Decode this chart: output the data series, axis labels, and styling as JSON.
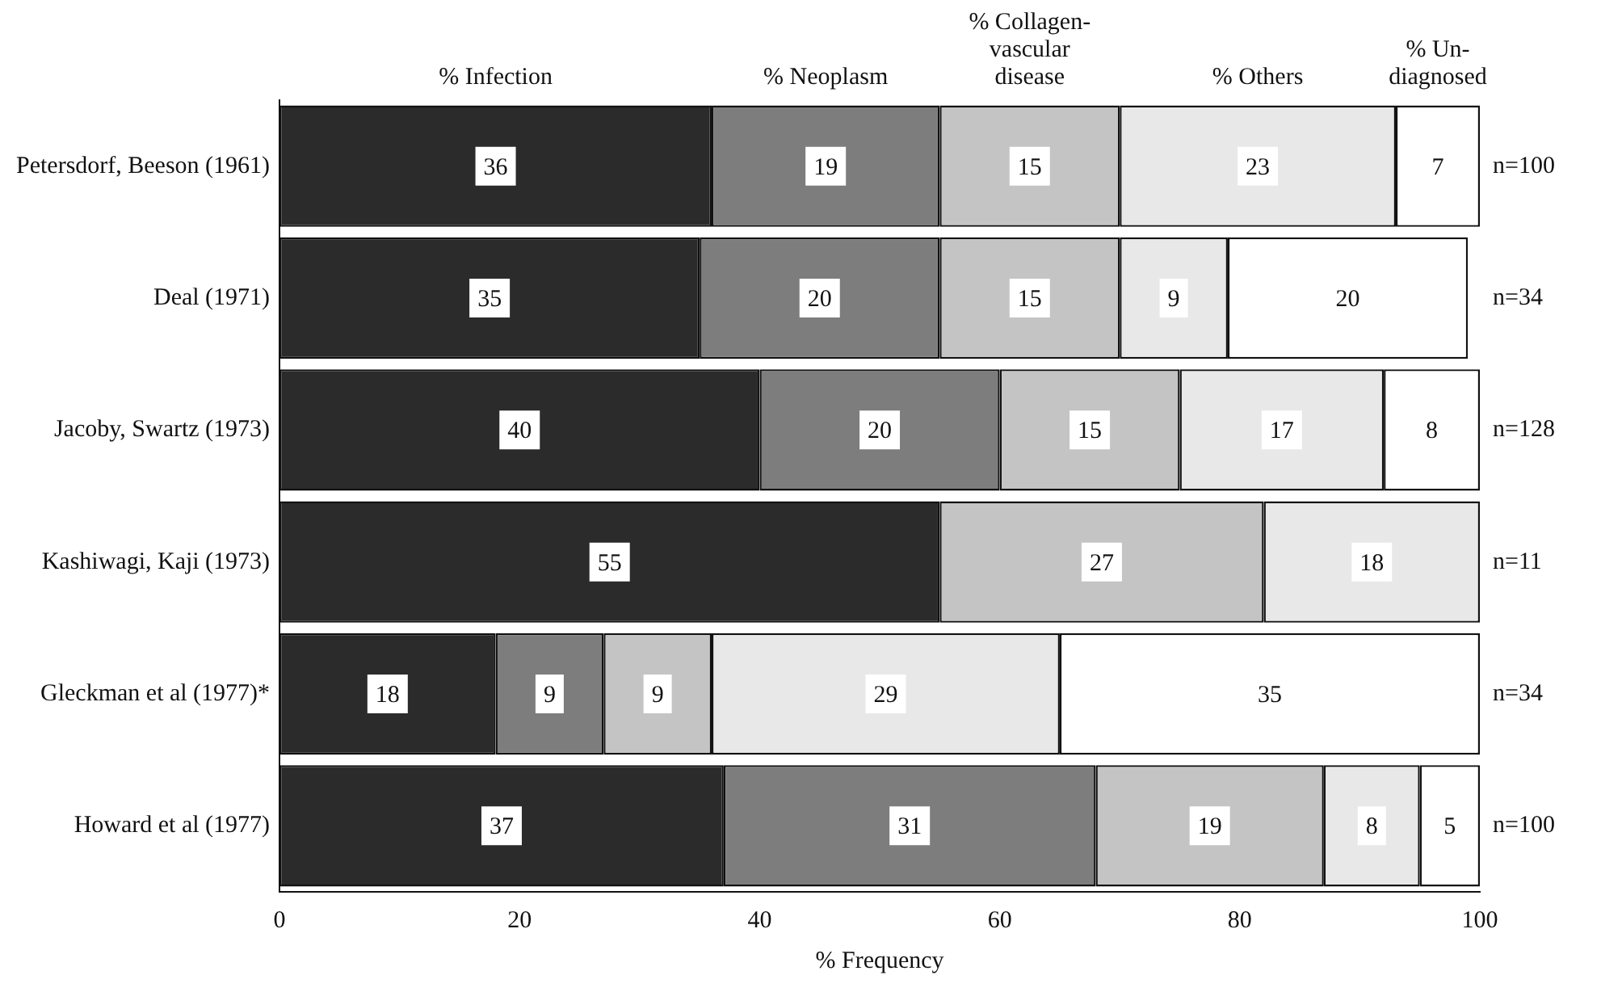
{
  "chart_data": {
    "type": "bar",
    "orientation": "horizontal",
    "stacked": true,
    "data_labels": true,
    "grid": false,
    "legend": false,
    "xlabel": "% Frequency",
    "xlim": [
      0,
      100
    ],
    "xticks": [
      0,
      20,
      40,
      60,
      80,
      100
    ],
    "categories": [
      "Petersdorf, Beeson (1961)",
      "Deal (1971)",
      "Jacoby, Swartz (1973)",
      "Kashiwagi, Kaji (1973)",
      "Gleckman et al (1977)*",
      "Howard et al (1977)"
    ],
    "series": [
      {
        "name": "% Infection",
        "color": "#2b2b2b",
        "values": [
          36,
          35,
          40,
          55,
          18,
          37
        ]
      },
      {
        "name": "% Neoplasm",
        "color": "#7d7d7d",
        "values": [
          19,
          20,
          20,
          null,
          9,
          31
        ]
      },
      {
        "name": "% Collagen-vascular disease",
        "color": "#c4c4c4",
        "values": [
          15,
          15,
          15,
          27,
          9,
          19
        ]
      },
      {
        "name": "% Others",
        "color": "#e8e8e8",
        "values": [
          23,
          9,
          17,
          18,
          29,
          8
        ]
      },
      {
        "name": "% Un-diagnosed",
        "color": "#ffffff",
        "values": [
          7,
          20,
          8,
          null,
          35,
          5
        ]
      }
    ],
    "annotations": [
      "n=100",
      "n=34",
      "n=128",
      "n=11",
      "n=34",
      "n=100"
    ]
  }
}
